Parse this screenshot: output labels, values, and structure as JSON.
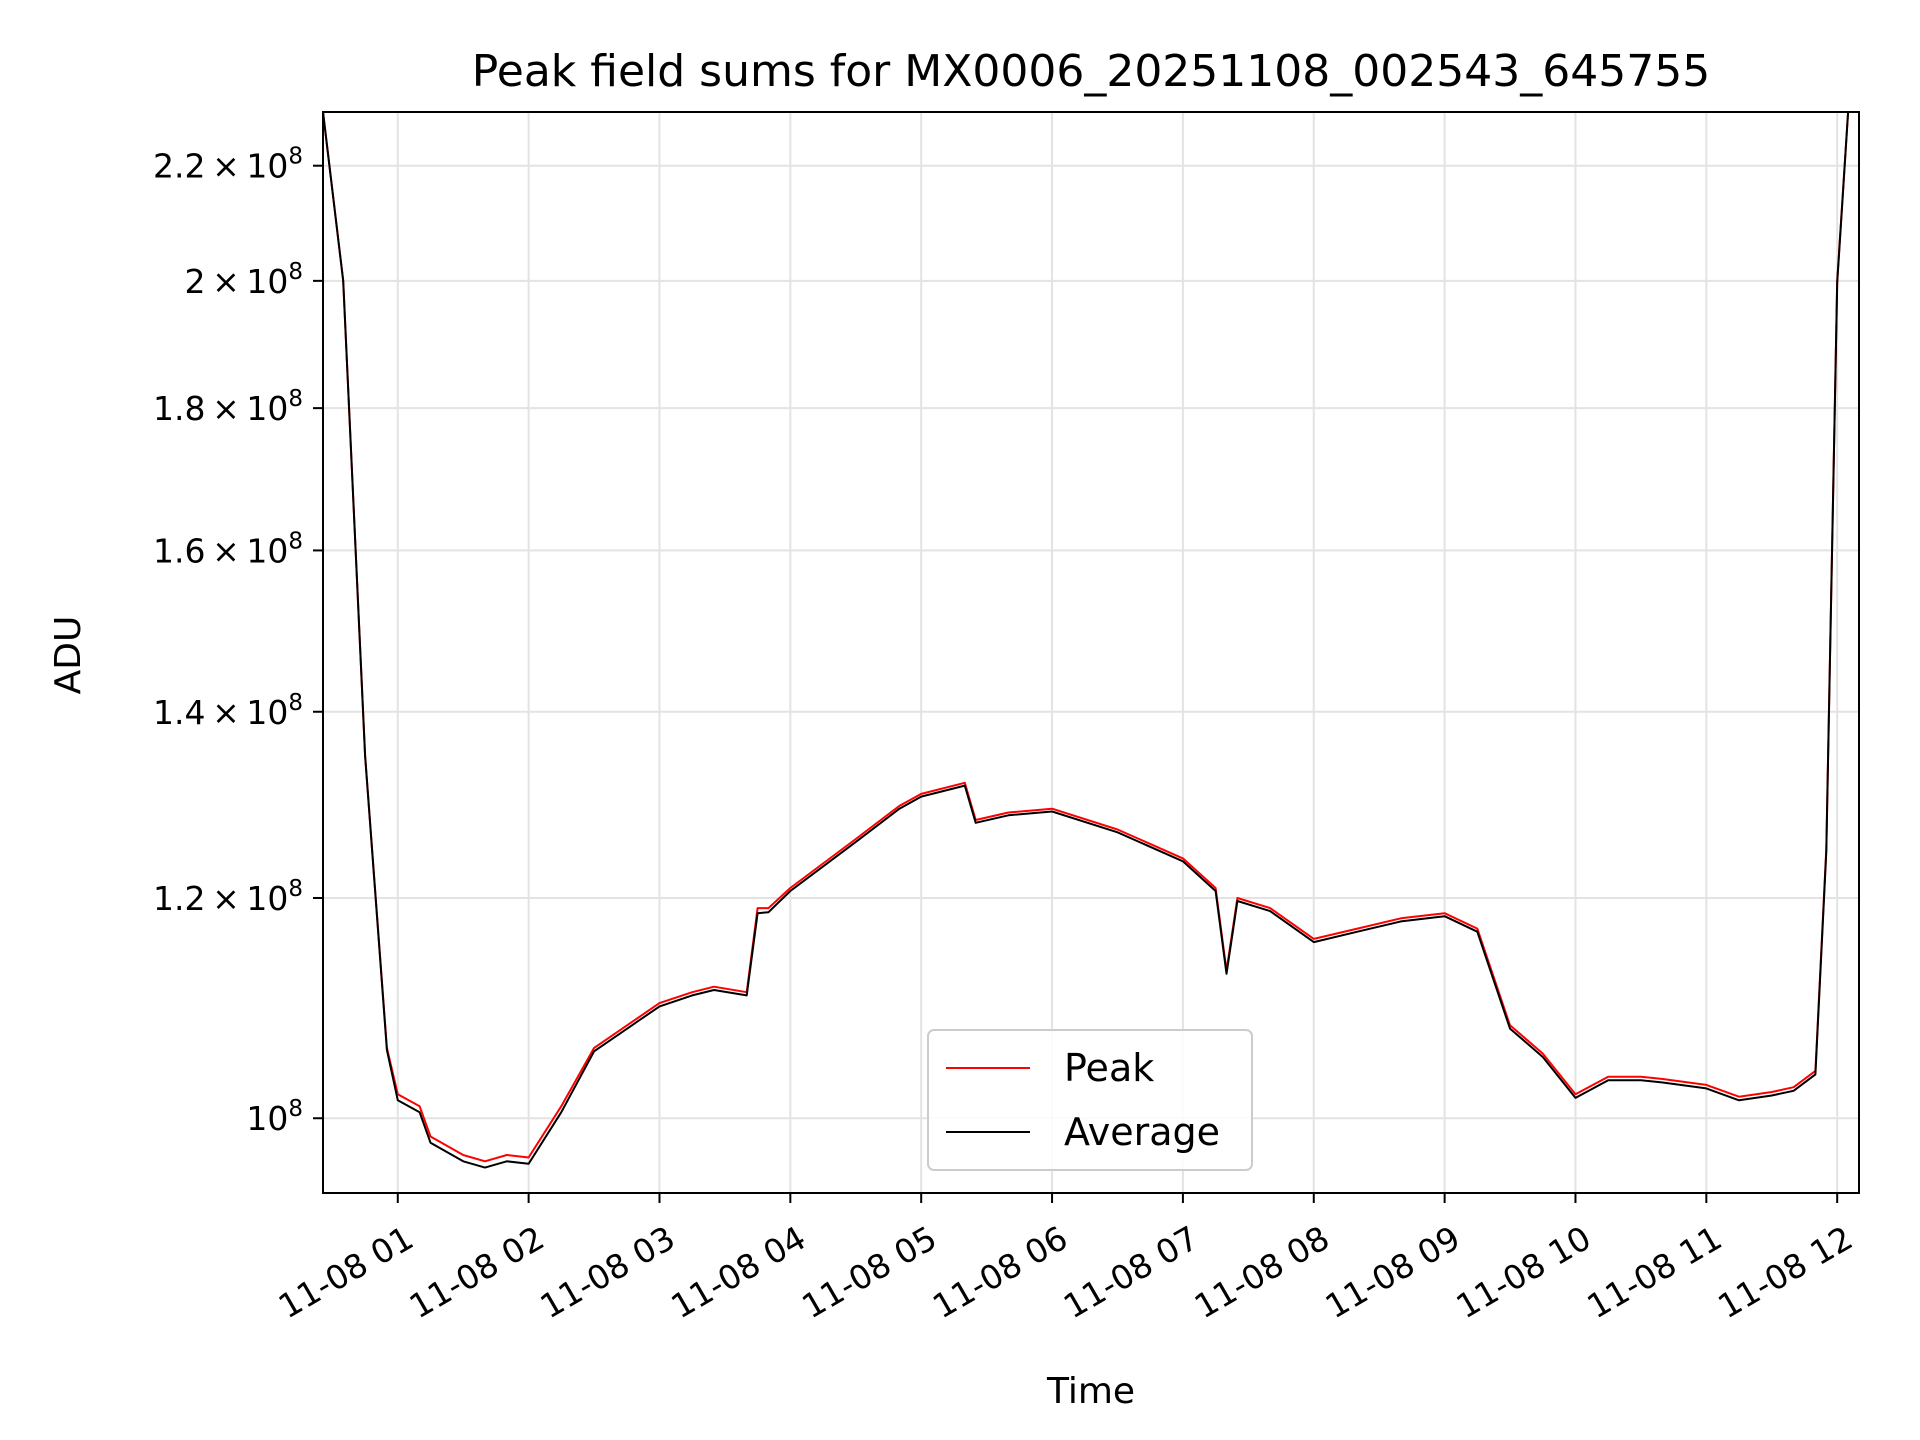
{
  "chart_data": {
    "type": "line",
    "title": "Peak field sums for MX0006_20251108_002543_645755",
    "xlabel": "Time",
    "ylabel": "ADU",
    "y_scale": "log",
    "ylim": [
      94000000,
      230000000
    ],
    "xlim": [
      "11-08 00:25:43",
      "11-08 12:10"
    ],
    "grid": true,
    "legend_position": "lower center",
    "x_ticks": [
      "11-08 01",
      "11-08 02",
      "11-08 03",
      "11-08 04",
      "11-08 05",
      "11-08 06",
      "11-08 07",
      "11-08 08",
      "11-08 09",
      "11-08 10",
      "11-08 11",
      "11-08 12"
    ],
    "y_ticks": [
      {
        "value": 100000000,
        "mantissa": "",
        "exponent": "8",
        "text": "10^8"
      },
      {
        "value": 120000000,
        "mantissa": "1.2",
        "exponent": "8",
        "text": "1.2 × 10^8"
      },
      {
        "value": 140000000,
        "mantissa": "1.4",
        "exponent": "8",
        "text": "1.4 × 10^8"
      },
      {
        "value": 160000000,
        "mantissa": "1.6",
        "exponent": "8",
        "text": "1.6 × 10^8"
      },
      {
        "value": 180000000,
        "mantissa": "1.8",
        "exponent": "8",
        "text": "1.8 × 10^8"
      },
      {
        "value": 200000000,
        "mantissa": "2",
        "exponent": "8",
        "text": "2 × 10^8"
      },
      {
        "value": 220000000,
        "mantissa": "2.2",
        "exponent": "8",
        "text": "2.2 × 10^8"
      }
    ],
    "series": [
      {
        "name": "Peak",
        "color": "#ff0000",
        "x": [
          "00:25",
          "00:35",
          "00:45",
          "00:55",
          "01:00",
          "01:10",
          "01:15",
          "01:30",
          "01:40",
          "01:50",
          "02:00",
          "02:15",
          "02:30",
          "03:00",
          "03:15",
          "03:25",
          "03:40",
          "03:45",
          "03:50",
          "04:00",
          "04:30",
          "04:50",
          "05:00",
          "05:20",
          "05:25",
          "05:40",
          "06:00",
          "06:30",
          "07:00",
          "07:15",
          "07:20",
          "07:25",
          "07:40",
          "08:00",
          "08:20",
          "08:40",
          "09:00",
          "09:15",
          "09:30",
          "09:45",
          "10:00",
          "10:15",
          "10:30",
          "10:40",
          "11:00",
          "11:15",
          "11:30",
          "11:40",
          "11:50",
          "11:55",
          "12:00",
          "12:05"
        ],
        "values": [
          230000000,
          200000000,
          135000000,
          106000000,
          102000000,
          101000000,
          98500000,
          97000000,
          96500000,
          97000000,
          96800000,
          101000000,
          106000000,
          110000000,
          111000000,
          111500000,
          111000000,
          119000000,
          119000000,
          121000000,
          126000000,
          129500000,
          130800000,
          132000000,
          128000000,
          128800000,
          129200000,
          127000000,
          124000000,
          121000000,
          113000000,
          120000000,
          119000000,
          116000000,
          117000000,
          118000000,
          118500000,
          117000000,
          108000000,
          105500000,
          102000000,
          103500000,
          103500000,
          103300000,
          102800000,
          101800000,
          102200000,
          102600000,
          104000000,
          125000000,
          200000000,
          230000000
        ]
      },
      {
        "name": "Average",
        "color": "#000000",
        "x": [
          "00:25",
          "00:35",
          "00:45",
          "00:55",
          "01:00",
          "01:10",
          "01:15",
          "01:30",
          "01:40",
          "01:50",
          "02:00",
          "02:15",
          "02:30",
          "03:00",
          "03:15",
          "03:25",
          "03:40",
          "03:45",
          "03:50",
          "04:00",
          "04:30",
          "04:50",
          "05:00",
          "05:20",
          "05:25",
          "05:40",
          "06:00",
          "06:30",
          "07:00",
          "07:15",
          "07:20",
          "07:25",
          "07:40",
          "08:00",
          "08:20",
          "08:40",
          "09:00",
          "09:15",
          "09:30",
          "09:45",
          "10:00",
          "10:15",
          "10:30",
          "10:40",
          "11:00",
          "11:15",
          "11:30",
          "11:40",
          "11:50",
          "11:55",
          "12:00",
          "12:05"
        ],
        "values": [
          230000000,
          200000000,
          135000000,
          105800000,
          101500000,
          100500000,
          98000000,
          96500000,
          96000000,
          96500000,
          96300000,
          100500000,
          105700000,
          109700000,
          110700000,
          111200000,
          110700000,
          118500000,
          118600000,
          120700000,
          125700000,
          129200000,
          130500000,
          131700000,
          127700000,
          128500000,
          128900000,
          126700000,
          123700000,
          120700000,
          112700000,
          119700000,
          118700000,
          115700000,
          116700000,
          117700000,
          118200000,
          116700000,
          107700000,
          105200000,
          101700000,
          103200000,
          103200000,
          103000000,
          102500000,
          101500000,
          101900000,
          102300000,
          103700000,
          124700000,
          199700000,
          230000000
        ]
      }
    ]
  }
}
